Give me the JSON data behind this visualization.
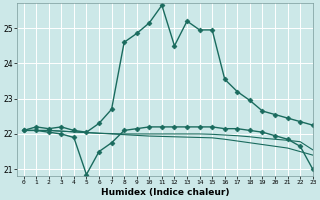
{
  "xlabel": "Humidex (Indice chaleur)",
  "background_color": "#cce8e8",
  "grid_color": "#ffffff",
  "line_color": "#1a6b5e",
  "xlim": [
    -0.5,
    23
  ],
  "ylim": [
    20.8,
    25.7
  ],
  "yticks": [
    21,
    22,
    23,
    24,
    25
  ],
  "xticks": [
    0,
    1,
    2,
    3,
    4,
    5,
    6,
    7,
    8,
    9,
    10,
    11,
    12,
    13,
    14,
    15,
    16,
    17,
    18,
    19,
    20,
    21,
    22,
    23
  ],
  "series": [
    {
      "x": [
        0,
        1,
        2,
        3,
        4,
        5,
        6,
        7,
        8,
        9,
        10,
        11,
        12,
        13,
        14,
        15,
        16,
        17,
        18,
        19,
        20,
        21,
        22,
        23
      ],
      "y": [
        22.1,
        22.2,
        22.15,
        22.2,
        22.1,
        22.05,
        22.3,
        22.7,
        24.6,
        24.85,
        25.15,
        25.65,
        24.5,
        25.2,
        24.95,
        24.95,
        23.55,
        23.2,
        22.95,
        22.65,
        22.55,
        22.45,
        22.35,
        22.25
      ],
      "marker": "D",
      "markersize": 2.5,
      "linewidth": 1.0
    },
    {
      "x": [
        0,
        1,
        2,
        3,
        4,
        5,
        6,
        7,
        8,
        9,
        10,
        11,
        12,
        13,
        14,
        15,
        16,
        17,
        18,
        19,
        20,
        21,
        22,
        23
      ],
      "y": [
        22.1,
        22.1,
        22.05,
        22.0,
        21.9,
        20.85,
        21.5,
        21.75,
        22.1,
        22.15,
        22.2,
        22.2,
        22.2,
        22.2,
        22.2,
        22.2,
        22.15,
        22.15,
        22.1,
        22.05,
        21.95,
        21.85,
        21.65,
        21.0
      ],
      "marker": "D",
      "markersize": 2.5,
      "linewidth": 1.0
    },
    {
      "x": [
        0,
        1,
        2,
        3,
        4,
        5,
        6,
        7,
        8,
        9,
        10,
        11,
        12,
        13,
        14,
        15,
        16,
        17,
        18,
        19,
        20,
        21,
        22,
        23
      ],
      "y": [
        22.1,
        22.1,
        22.1,
        22.08,
        22.06,
        22.04,
        22.02,
        22.0,
        21.98,
        21.96,
        21.94,
        21.93,
        21.92,
        21.91,
        21.9,
        21.89,
        21.85,
        21.8,
        21.75,
        21.7,
        21.65,
        21.6,
        21.5,
        21.4
      ],
      "marker": null,
      "markersize": 0,
      "linewidth": 0.8
    },
    {
      "x": [
        0,
        1,
        2,
        3,
        4,
        5,
        6,
        7,
        8,
        9,
        10,
        11,
        12,
        13,
        14,
        15,
        16,
        17,
        18,
        19,
        20,
        21,
        22,
        23
      ],
      "y": [
        22.1,
        22.1,
        22.1,
        22.08,
        22.06,
        22.04,
        22.02,
        22.01,
        22.0,
        22.0,
        22.0,
        22.0,
        22.0,
        22.0,
        22.0,
        21.99,
        21.97,
        21.95,
        21.92,
        21.88,
        21.85,
        21.82,
        21.78,
        21.55
      ],
      "marker": null,
      "markersize": 0,
      "linewidth": 0.8
    }
  ]
}
